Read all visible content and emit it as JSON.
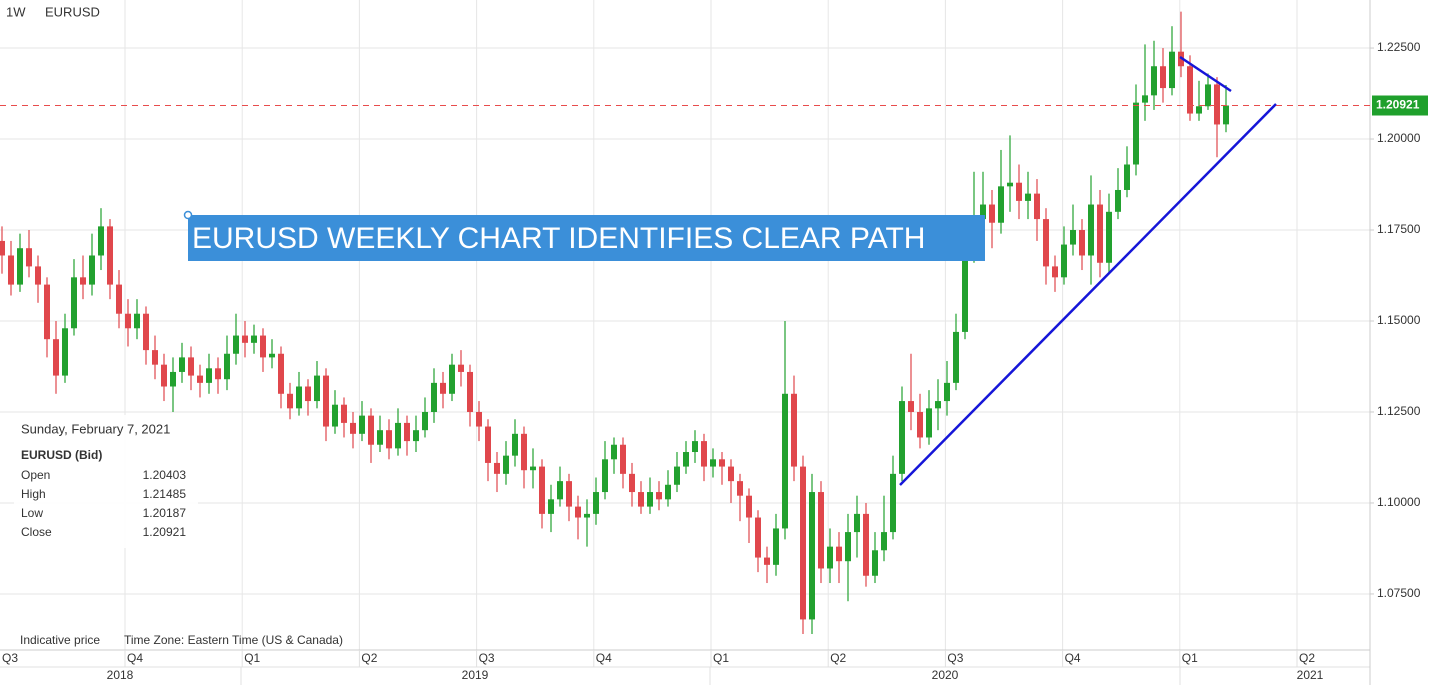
{
  "header": {
    "interval": "1W",
    "symbol": "EURUSD"
  },
  "chart_data": {
    "type": "candlestick",
    "annotation": "EURUSD WEEKLY CHART IDENTIFIES CLEAR PATH",
    "up_color": "#22a12f",
    "down_color": "#e0474c",
    "grid": true,
    "ylim": [
      1.0596,
      1.2382
    ],
    "yticks": [
      {
        "value": 1.075,
        "label": "1.07500"
      },
      {
        "value": 1.1,
        "label": "1.10000"
      },
      {
        "value": 1.125,
        "label": "1.12500"
      },
      {
        "value": 1.15,
        "label": "1.15000"
      },
      {
        "value": 1.175,
        "label": "1.17500"
      },
      {
        "value": 1.2,
        "label": "1.20000"
      },
      {
        "value": 1.225,
        "label": "1.22500"
      }
    ],
    "quarters": [
      "Q3",
      "Q4",
      "Q1",
      "Q2",
      "Q3",
      "Q4",
      "Q1",
      "Q2",
      "Q3",
      "Q4",
      "Q1",
      "Q2"
    ],
    "years": [
      "2018",
      "2019",
      "2020",
      "2021"
    ],
    "candles": [
      [
        1.172,
        1.176,
        1.163,
        1.168
      ],
      [
        1.168,
        1.172,
        1.157,
        1.16
      ],
      [
        1.16,
        1.174,
        1.158,
        1.17
      ],
      [
        1.17,
        1.175,
        1.162,
        1.165
      ],
      [
        1.165,
        1.168,
        1.155,
        1.16
      ],
      [
        1.16,
        1.162,
        1.14,
        1.145
      ],
      [
        1.145,
        1.15,
        1.13,
        1.135
      ],
      [
        1.135,
        1.152,
        1.133,
        1.148
      ],
      [
        1.148,
        1.167,
        1.146,
        1.162
      ],
      [
        1.162,
        1.168,
        1.156,
        1.16
      ],
      [
        1.16,
        1.174,
        1.157,
        1.168
      ],
      [
        1.168,
        1.181,
        1.164,
        1.176
      ],
      [
        1.176,
        1.178,
        1.156,
        1.16
      ],
      [
        1.16,
        1.164,
        1.148,
        1.152
      ],
      [
        1.152,
        1.156,
        1.143,
        1.148
      ],
      [
        1.148,
        1.156,
        1.145,
        1.152
      ],
      [
        1.152,
        1.154,
        1.138,
        1.142
      ],
      [
        1.142,
        1.146,
        1.134,
        1.138
      ],
      [
        1.138,
        1.141,
        1.128,
        1.132
      ],
      [
        1.132,
        1.14,
        1.125,
        1.136
      ],
      [
        1.136,
        1.144,
        1.133,
        1.14
      ],
      [
        1.14,
        1.143,
        1.131,
        1.135
      ],
      [
        1.135,
        1.138,
        1.129,
        1.133
      ],
      [
        1.133,
        1.141,
        1.13,
        1.137
      ],
      [
        1.137,
        1.14,
        1.13,
        1.134
      ],
      [
        1.134,
        1.146,
        1.131,
        1.141
      ],
      [
        1.141,
        1.152,
        1.138,
        1.146
      ],
      [
        1.146,
        1.15,
        1.14,
        1.144
      ],
      [
        1.144,
        1.149,
        1.141,
        1.146
      ],
      [
        1.146,
        1.148,
        1.136,
        1.14
      ],
      [
        1.14,
        1.145,
        1.137,
        1.141
      ],
      [
        1.141,
        1.143,
        1.126,
        1.13
      ],
      [
        1.13,
        1.133,
        1.123,
        1.126
      ],
      [
        1.126,
        1.136,
        1.124,
        1.132
      ],
      [
        1.132,
        1.134,
        1.124,
        1.128
      ],
      [
        1.128,
        1.139,
        1.126,
        1.135
      ],
      [
        1.135,
        1.137,
        1.117,
        1.121
      ],
      [
        1.121,
        1.131,
        1.119,
        1.127
      ],
      [
        1.127,
        1.129,
        1.118,
        1.122
      ],
      [
        1.122,
        1.125,
        1.115,
        1.119
      ],
      [
        1.119,
        1.128,
        1.117,
        1.124
      ],
      [
        1.124,
        1.126,
        1.111,
        1.116
      ],
      [
        1.116,
        1.124,
        1.114,
        1.12
      ],
      [
        1.12,
        1.123,
        1.112,
        1.115
      ],
      [
        1.115,
        1.126,
        1.113,
        1.122
      ],
      [
        1.122,
        1.124,
        1.113,
        1.117
      ],
      [
        1.117,
        1.124,
        1.114,
        1.12
      ],
      [
        1.12,
        1.129,
        1.118,
        1.125
      ],
      [
        1.125,
        1.137,
        1.122,
        1.133
      ],
      [
        1.133,
        1.136,
        1.126,
        1.13
      ],
      [
        1.13,
        1.141,
        1.128,
        1.138
      ],
      [
        1.138,
        1.142,
        1.132,
        1.136
      ],
      [
        1.136,
        1.138,
        1.121,
        1.125
      ],
      [
        1.125,
        1.128,
        1.117,
        1.121
      ],
      [
        1.121,
        1.123,
        1.106,
        1.111
      ],
      [
        1.111,
        1.114,
        1.103,
        1.108
      ],
      [
        1.108,
        1.117,
        1.105,
        1.113
      ],
      [
        1.113,
        1.123,
        1.11,
        1.119
      ],
      [
        1.119,
        1.121,
        1.104,
        1.109
      ],
      [
        1.109,
        1.115,
        1.104,
        1.11
      ],
      [
        1.11,
        1.112,
        1.093,
        1.097
      ],
      [
        1.097,
        1.105,
        1.092,
        1.101
      ],
      [
        1.101,
        1.11,
        1.099,
        1.106
      ],
      [
        1.106,
        1.108,
        1.095,
        1.099
      ],
      [
        1.099,
        1.102,
        1.09,
        1.096
      ],
      [
        1.096,
        1.101,
        1.088,
        1.097
      ],
      [
        1.097,
        1.107,
        1.094,
        1.103
      ],
      [
        1.103,
        1.117,
        1.101,
        1.112
      ],
      [
        1.112,
        1.118,
        1.108,
        1.116
      ],
      [
        1.116,
        1.118,
        1.104,
        1.108
      ],
      [
        1.108,
        1.111,
        1.099,
        1.103
      ],
      [
        1.103,
        1.106,
        1.097,
        1.099
      ],
      [
        1.099,
        1.107,
        1.097,
        1.103
      ],
      [
        1.103,
        1.106,
        1.098,
        1.101
      ],
      [
        1.101,
        1.109,
        1.099,
        1.105
      ],
      [
        1.105,
        1.114,
        1.103,
        1.11
      ],
      [
        1.11,
        1.117,
        1.108,
        1.114
      ],
      [
        1.114,
        1.12,
        1.111,
        1.117
      ],
      [
        1.117,
        1.119,
        1.106,
        1.11
      ],
      [
        1.11,
        1.115,
        1.107,
        1.112
      ],
      [
        1.112,
        1.114,
        1.105,
        1.11
      ],
      [
        1.11,
        1.112,
        1.1,
        1.106
      ],
      [
        1.106,
        1.108,
        1.095,
        1.102
      ],
      [
        1.102,
        1.104,
        1.089,
        1.096
      ],
      [
        1.096,
        1.098,
        1.081,
        1.085
      ],
      [
        1.085,
        1.088,
        1.078,
        1.083
      ],
      [
        1.083,
        1.097,
        1.08,
        1.093
      ],
      [
        1.093,
        1.15,
        1.09,
        1.13
      ],
      [
        1.13,
        1.135,
        1.106,
        1.11
      ],
      [
        1.11,
        1.113,
        1.064,
        1.068
      ],
      [
        1.068,
        1.108,
        1.064,
        1.103
      ],
      [
        1.103,
        1.106,
        1.078,
        1.082
      ],
      [
        1.082,
        1.093,
        1.078,
        1.088
      ],
      [
        1.088,
        1.092,
        1.078,
        1.084
      ],
      [
        1.084,
        1.097,
        1.073,
        1.092
      ],
      [
        1.092,
        1.102,
        1.085,
        1.097
      ],
      [
        1.097,
        1.1,
        1.077,
        1.08
      ],
      [
        1.08,
        1.092,
        1.078,
        1.087
      ],
      [
        1.087,
        1.102,
        1.084,
        1.092
      ],
      [
        1.092,
        1.113,
        1.09,
        1.108
      ],
      [
        1.108,
        1.132,
        1.106,
        1.128
      ],
      [
        1.128,
        1.141,
        1.12,
        1.125
      ],
      [
        1.125,
        1.13,
        1.115,
        1.118
      ],
      [
        1.118,
        1.131,
        1.116,
        1.126
      ],
      [
        1.126,
        1.134,
        1.12,
        1.128
      ],
      [
        1.128,
        1.139,
        1.124,
        1.133
      ],
      [
        1.133,
        1.152,
        1.131,
        1.147
      ],
      [
        1.147,
        1.175,
        1.145,
        1.17
      ],
      [
        1.17,
        1.191,
        1.166,
        1.178
      ],
      [
        1.178,
        1.191,
        1.172,
        1.182
      ],
      [
        1.182,
        1.186,
        1.17,
        1.177
      ],
      [
        1.177,
        1.197,
        1.174,
        1.187
      ],
      [
        1.187,
        1.201,
        1.18,
        1.188
      ],
      [
        1.188,
        1.193,
        1.178,
        1.183
      ],
      [
        1.183,
        1.191,
        1.178,
        1.185
      ],
      [
        1.185,
        1.189,
        1.172,
        1.178
      ],
      [
        1.178,
        1.181,
        1.16,
        1.165
      ],
      [
        1.165,
        1.168,
        1.158,
        1.162
      ],
      [
        1.162,
        1.176,
        1.16,
        1.171
      ],
      [
        1.171,
        1.182,
        1.168,
        1.175
      ],
      [
        1.175,
        1.178,
        1.164,
        1.168
      ],
      [
        1.168,
        1.19,
        1.16,
        1.182
      ],
      [
        1.182,
        1.186,
        1.162,
        1.166
      ],
      [
        1.166,
        1.185,
        1.163,
        1.18
      ],
      [
        1.18,
        1.192,
        1.178,
        1.186
      ],
      [
        1.186,
        1.198,
        1.184,
        1.193
      ],
      [
        1.193,
        1.215,
        1.19,
        1.21
      ],
      [
        1.21,
        1.226,
        1.205,
        1.212
      ],
      [
        1.212,
        1.227,
        1.208,
        1.22
      ],
      [
        1.22,
        1.225,
        1.21,
        1.214
      ],
      [
        1.214,
        1.231,
        1.212,
        1.224
      ],
      [
        1.224,
        1.235,
        1.217,
        1.22
      ],
      [
        1.22,
        1.223,
        1.205,
        1.207
      ],
      [
        1.207,
        1.216,
        1.205,
        1.209
      ],
      [
        1.209,
        1.218,
        1.208,
        1.215
      ],
      [
        1.215,
        1.217,
        1.195,
        1.204
      ],
      [
        1.20403,
        1.21485,
        1.20187,
        1.20921
      ]
    ]
  },
  "info_box": {
    "date": "Sunday, February 7, 2021",
    "instrument": "EURUSD (Bid)",
    "fields": [
      "Open",
      "High",
      "Low",
      "Close"
    ]
  },
  "footer": {
    "note": "Indicative price",
    "timezone": "Time Zone: Eastern Time (US & Canada)"
  }
}
